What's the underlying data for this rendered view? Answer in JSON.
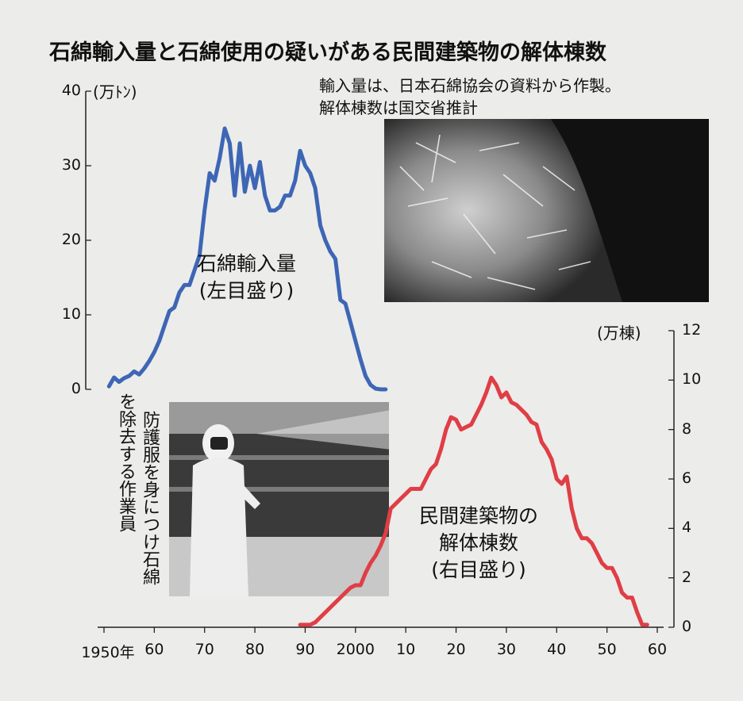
{
  "title": "石綿輸入量と石綿使用の疑いがある民間建築物の解体棟数",
  "source_lines": [
    "輸入量は、日本石綿協会の資料から作製。",
    "解体棟数は国交省推計"
  ],
  "photo_caption_lines": [
    "防護服を身につけ石綿",
    "を除去する作業員"
  ],
  "colors": {
    "import": "#3d66b5",
    "demolition": "#e03e45",
    "background": "#ececea"
  },
  "chart_data": {
    "type": "line",
    "title": "石綿輸入量と石綿使用の疑いがある民間建築物の解体棟数",
    "x_tick_labels": [
      "1950年",
      "60",
      "70",
      "80",
      "90",
      "2000",
      "10",
      "20",
      "30",
      "40",
      "50",
      "60"
    ],
    "x_tick_years": [
      1950,
      1960,
      1970,
      1980,
      1990,
      2000,
      2010,
      2020,
      2030,
      2040,
      2050,
      2060
    ],
    "xlim": [
      1950,
      2060
    ],
    "left_axis": {
      "unit_label": "(万ﾄﾝ)",
      "ylim": [
        0,
        40
      ],
      "tick_labels": [
        "0",
        "10",
        "20",
        "30",
        "40"
      ]
    },
    "right_axis": {
      "unit_label": "(万棟)",
      "ylim": [
        0,
        12
      ],
      "tick_labels": [
        "0",
        "2",
        "4",
        "6",
        "8",
        "10",
        "12"
      ]
    },
    "series": [
      {
        "name": "石綿輸入量",
        "axis_note": "(左目盛り)",
        "axis": "left",
        "color": "#3d66b5",
        "x": [
          1951,
          1952,
          1953,
          1954,
          1955,
          1956,
          1957,
          1958,
          1959,
          1960,
          1961,
          1962,
          1963,
          1964,
          1965,
          1966,
          1967,
          1968,
          1969,
          1970,
          1971,
          1972,
          1973,
          1974,
          1975,
          1976,
          1977,
          1978,
          1979,
          1980,
          1981,
          1982,
          1983,
          1984,
          1985,
          1986,
          1987,
          1988,
          1989,
          1990,
          1991,
          1992,
          1993,
          1994,
          1995,
          1996,
          1997,
          1998,
          1999,
          2000,
          2001,
          2002,
          2003,
          2004,
          2005,
          2006
        ],
        "values": [
          0.4,
          1.6,
          1.0,
          1.5,
          1.8,
          2.4,
          2.0,
          2.8,
          3.8,
          5.0,
          6.5,
          8.5,
          10.5,
          11.0,
          13.0,
          14.0,
          14.0,
          16.0,
          18.0,
          24.0,
          29.0,
          28.0,
          31.0,
          35.0,
          33.0,
          26.0,
          33.0,
          26.5,
          30.0,
          27.0,
          30.5,
          26.0,
          24.0,
          24.0,
          24.5,
          26.0,
          26.0,
          28.0,
          32.0,
          30.0,
          29.0,
          27.0,
          22.0,
          20.0,
          18.5,
          17.5,
          12.0,
          11.5,
          9.0,
          6.5,
          4.0,
          1.8,
          0.6,
          0.1,
          0.0,
          0.0
        ]
      },
      {
        "name": "民間建築物の解体棟数",
        "axis_note": "(右目盛り)",
        "axis": "right",
        "color": "#e03e45",
        "x": [
          1989,
          1990,
          1991,
          1992,
          1993,
          1994,
          1995,
          1996,
          1997,
          1998,
          1999,
          2000,
          2001,
          2002,
          2003,
          2004,
          2005,
          2006,
          2007,
          2008,
          2009,
          2010,
          2011,
          2012,
          2013,
          2014,
          2015,
          2016,
          2017,
          2018,
          2019,
          2020,
          2021,
          2022,
          2023,
          2024,
          2025,
          2026,
          2027,
          2028,
          2029,
          2030,
          2031,
          2032,
          2033,
          2034,
          2035,
          2036,
          2037,
          2038,
          2039,
          2040,
          2041,
          2042,
          2043,
          2044,
          2045,
          2046,
          2047,
          2048,
          2049,
          2050,
          2051,
          2052,
          2053,
          2054,
          2055,
          2056,
          2057,
          2058
        ],
        "values": [
          0.1,
          0.1,
          0.1,
          0.2,
          0.4,
          0.6,
          0.8,
          1.0,
          1.2,
          1.4,
          1.6,
          1.7,
          1.7,
          2.2,
          2.6,
          2.9,
          3.3,
          3.8,
          4.8,
          5.0,
          5.2,
          5.4,
          5.6,
          5.6,
          5.6,
          6.0,
          6.4,
          6.6,
          7.2,
          8.0,
          8.5,
          8.4,
          8.0,
          8.1,
          8.2,
          8.6,
          9.0,
          9.5,
          10.1,
          9.8,
          9.3,
          9.5,
          9.1,
          9.0,
          8.8,
          8.6,
          8.3,
          8.2,
          7.5,
          7.2,
          6.8,
          6.0,
          5.8,
          6.1,
          4.8,
          4.0,
          3.6,
          3.6,
          3.4,
          3.0,
          2.6,
          2.4,
          2.4,
          2.0,
          1.4,
          1.2,
          1.2,
          0.6,
          0.1,
          0.1
        ]
      }
    ],
    "grid": false,
    "legend": "labels placed next to the lines"
  }
}
